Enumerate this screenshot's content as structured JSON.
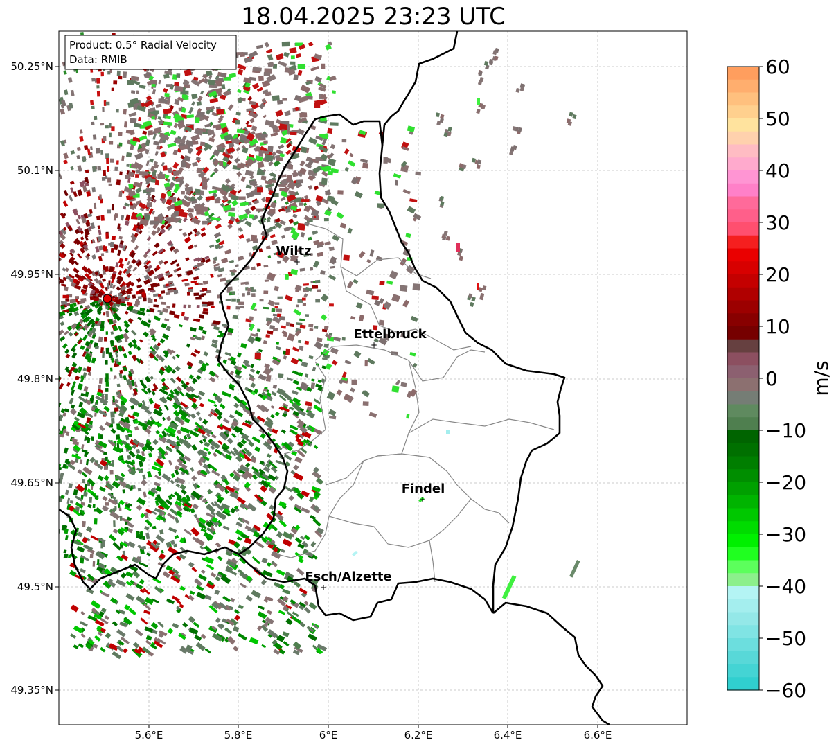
{
  "title": "18.04.2025 23:23 UTC",
  "info_box": {
    "product": "Product: 0.5° Radial Velocity",
    "data": "Data: RMIB"
  },
  "map": {
    "lon_range": [
      5.4,
      6.8
    ],
    "lat_range": [
      49.3,
      50.3
    ],
    "x_ticks": [
      "5.6°E",
      "5.8°E",
      "6°E",
      "6.2°E",
      "6.4°E",
      "6.6°E"
    ],
    "y_ticks": [
      "50.25°N",
      "50.1°N",
      "49.95°N",
      "49.8°N",
      "49.65°N",
      "49.5°N",
      "49.35°N"
    ],
    "grid": true,
    "radar_site": {
      "lon": 5.505,
      "lat": 49.915
    },
    "cities": [
      {
        "name": "Wiltz",
        "lon": 5.932,
        "lat": 49.967
      },
      {
        "name": "Ettelbruck",
        "lon": 6.104,
        "lat": 49.847
      },
      {
        "name": "Findel",
        "lon": 6.208,
        "lat": 49.627
      },
      {
        "name": "Esch/Alzette",
        "lon": 5.986,
        "lat": 49.5
      }
    ]
  },
  "colorbar": {
    "label": "m/s",
    "range": [
      -60,
      60
    ],
    "ticks": [
      "60",
      "50",
      "40",
      "30",
      "20",
      "10",
      "0",
      "−10",
      "−20",
      "−30",
      "−40",
      "−50",
      "−60"
    ]
  }
}
